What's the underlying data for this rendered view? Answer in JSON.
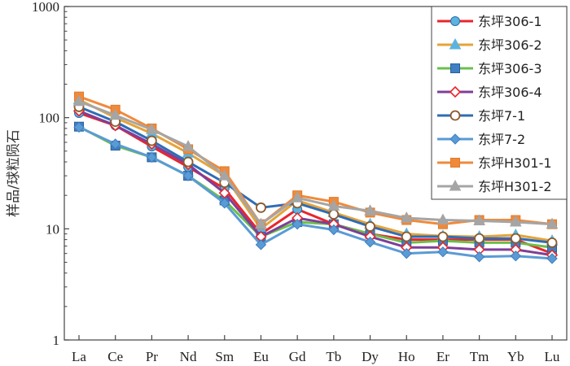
{
  "chart_data": {
    "type": "line",
    "title": "",
    "xlabel": "",
    "ylabel": "样品/球粒陨石",
    "yscale": "log",
    "ylim": [
      1,
      1000
    ],
    "ytick_values": [
      1,
      10,
      100,
      1000
    ],
    "ytick_labels": [
      "1",
      "10",
      "100",
      "1000"
    ],
    "categories": [
      "La",
      "Ce",
      "Pr",
      "Nd",
      "Sm",
      "Eu",
      "Gd",
      "Tb",
      "Dy",
      "Ho",
      "Er",
      "Tm",
      "Yb",
      "Lu"
    ],
    "legend_position": "top-right",
    "series": [
      {
        "name": "东坪306-1",
        "color": "#e8262d",
        "marker": "circle",
        "marker_color": "#5ab4e0",
        "values": [
          110,
          85,
          55,
          36,
          23,
          9,
          15,
          11,
          9,
          8,
          8,
          8,
          8,
          6
        ]
      },
      {
        "name": "东坪306-2",
        "color": "#e4a43a",
        "marker": "triangle",
        "marker_color": "#5ab4e0",
        "values": [
          145,
          100,
          72,
          48,
          30,
          10,
          18,
          14,
          11,
          9,
          8.6,
          8.5,
          8.8,
          7.8
        ]
      },
      {
        "name": "东坪306-3",
        "color": "#6abf4b",
        "marker": "square",
        "marker_color": "#3f7fc4",
        "values": [
          83,
          56,
          44,
          30,
          18,
          8.5,
          11.5,
          11,
          9,
          7.5,
          7.8,
          7.5,
          7.5,
          6.8
        ]
      },
      {
        "name": "东坪306-4",
        "color": "#7e3f98",
        "marker": "diamond-open",
        "marker_color": "#e8262d",
        "values": [
          115,
          85,
          58,
          38,
          21,
          8.5,
          12.5,
          11,
          8.5,
          6.8,
          6.8,
          6.5,
          6.5,
          5.8
        ]
      },
      {
        "name": "东坪7-1",
        "color": "#2f6db5",
        "marker": "circle-open",
        "marker_color": "#8b5a2b",
        "values": [
          125,
          92,
          62,
          40,
          26,
          15.5,
          17,
          13.5,
          10.5,
          8.5,
          8.5,
          8.2,
          8.2,
          7.5
        ]
      },
      {
        "name": "东坪7-2",
        "color": "#5a9bd5",
        "marker": "diamond",
        "marker_color": "#5a9bd5",
        "values": [
          82,
          58,
          44,
          30,
          17,
          7.2,
          11,
          9.8,
          7.6,
          6,
          6.2,
          5.6,
          5.7,
          5.4
        ]
      },
      {
        "name": "东坪H301-1",
        "color": "#f08a3b",
        "marker": "square",
        "marker_color": "#f08a3b",
        "values": [
          155,
          118,
          80,
          52,
          33,
          11,
          20,
          17.5,
          14,
          12,
          11,
          12,
          12,
          11
        ]
      },
      {
        "name": "东坪H301-2",
        "color": "#a5a5a5",
        "marker": "triangle",
        "marker_color": "#a5a5a5",
        "values": [
          140,
          105,
          78,
          55,
          30,
          11,
          19,
          16,
          14.5,
          12.5,
          12,
          11.8,
          11.5,
          11
        ]
      }
    ]
  }
}
